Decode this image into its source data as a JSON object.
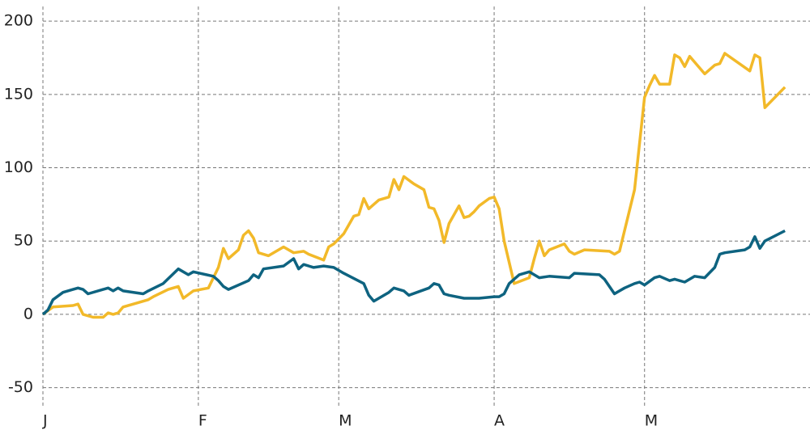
{
  "chart_data": {
    "type": "line",
    "xlim": [
      0,
      153
    ],
    "ylim": [
      -64,
      210
    ],
    "xticks": [
      {
        "value": 0,
        "label": "J"
      },
      {
        "value": 31,
        "label": "F"
      },
      {
        "value": 59,
        "label": "M"
      },
      {
        "value": 90,
        "label": "A"
      },
      {
        "value": 120,
        "label": "M"
      }
    ],
    "yticks": [
      -50,
      0,
      50,
      100,
      150,
      200
    ],
    "grid": true,
    "series": [
      {
        "color": "#f2b929",
        "x": [
          0,
          2,
          6,
          7,
          8,
          10,
          12,
          13,
          14,
          15,
          16,
          19,
          21,
          22,
          25,
          27,
          28,
          30,
          33,
          35,
          36,
          37,
          39,
          40,
          41,
          42,
          43,
          45,
          48,
          50,
          52,
          53,
          56,
          57,
          58,
          60,
          62,
          63,
          64,
          65,
          67,
          69,
          70,
          71,
          72,
          74,
          76,
          77,
          78,
          79,
          80,
          81,
          83,
          84,
          85,
          86,
          87,
          89,
          90,
          91,
          92,
          94,
          97,
          98,
          99,
          100,
          101,
          104,
          105,
          106,
          108,
          113,
          114,
          115,
          118,
          120,
          121,
          122,
          123,
          125,
          126,
          127,
          128,
          129,
          132,
          134,
          135,
          136,
          141,
          142,
          143,
          144,
          148
        ],
        "values": [
          0,
          5,
          6,
          7,
          0,
          -2,
          -2,
          1,
          0,
          1,
          5,
          8,
          10,
          12,
          17,
          19,
          11,
          16,
          18,
          32,
          45,
          38,
          44,
          54,
          57,
          52,
          42,
          40,
          46,
          42,
          43,
          41,
          37,
          46,
          48,
          55,
          67,
          68,
          79,
          72,
          78,
          80,
          92,
          85,
          94,
          89,
          85,
          73,
          72,
          64,
          49,
          62,
          74,
          66,
          67,
          70,
          74,
          79,
          80,
          72,
          50,
          21,
          25,
          38,
          50,
          40,
          44,
          48,
          43,
          41,
          44,
          43,
          41,
          43,
          85,
          148,
          156,
          163,
          157,
          157,
          177,
          175,
          169,
          176,
          164,
          170,
          171,
          178,
          166,
          177,
          175,
          141,
          155
        ]
      },
      {
        "color": "#0e6380",
        "x": [
          0,
          1,
          2,
          4,
          6,
          7,
          8,
          9,
          12,
          13,
          14,
          15,
          16,
          20,
          21,
          24,
          27,
          29,
          30,
          34,
          35,
          36,
          37,
          41,
          42,
          43,
          44,
          48,
          50,
          51,
          52,
          54,
          56,
          58,
          60,
          64,
          65,
          66,
          69,
          70,
          72,
          73,
          77,
          78,
          79,
          80,
          81,
          84,
          87,
          90,
          91,
          92,
          93,
          95,
          97,
          99,
          101,
          105,
          106,
          111,
          112,
          114,
          116,
          118,
          119,
          120,
          122,
          123,
          125,
          126,
          128,
          130,
          132,
          134,
          135,
          136,
          140,
          141,
          142,
          143,
          144,
          148
        ],
        "values": [
          0,
          3,
          10,
          15,
          17,
          18,
          17,
          14,
          17,
          18,
          16,
          18,
          16,
          14,
          16,
          21,
          31,
          27,
          29,
          26,
          23,
          19,
          17,
          23,
          27,
          25,
          31,
          33,
          38,
          31,
          34,
          32,
          33,
          32,
          28,
          21,
          13,
          9,
          15,
          18,
          16,
          13,
          18,
          21,
          20,
          14,
          13,
          11,
          11,
          12,
          12,
          14,
          21,
          27,
          29,
          25,
          26,
          25,
          28,
          27,
          24,
          14,
          18,
          21,
          22,
          20,
          25,
          26,
          23,
          24,
          22,
          26,
          25,
          32,
          41,
          42,
          44,
          46,
          53,
          45,
          50,
          57
        ]
      }
    ]
  }
}
